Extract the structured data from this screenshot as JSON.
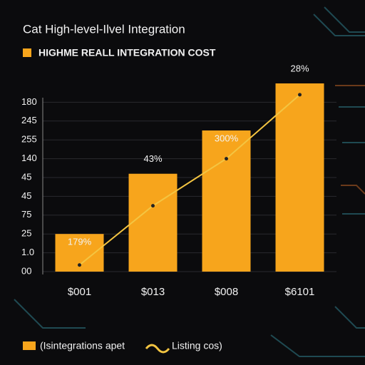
{
  "chart_data": {
    "type": "bar",
    "title": "Cat High-level-Ilvel Integration",
    "subtitle": "HIGHME REALL INTEGRATION COST",
    "categories": [
      "$001",
      "$013",
      "$008",
      "$6101"
    ],
    "series": [
      {
        "name": "(Isintegrations apet",
        "color": "#f7a51c",
        "type": "bar",
        "values": [
          2.0,
          5.2,
          7.5,
          10.0
        ]
      },
      {
        "name": "Listing cos)",
        "color": "#f4c542",
        "type": "line",
        "values": [
          0.35,
          3.5,
          6.0,
          9.4
        ]
      }
    ],
    "annotations": [
      "179%",
      "43%",
      "300%",
      "28%"
    ],
    "ylim": [
      0,
      10
    ],
    "yticks": [
      {
        "value": 0,
        "label": "00"
      },
      {
        "value": 1,
        "label": "1.0"
      },
      {
        "value": 2,
        "label": "25"
      },
      {
        "value": 3,
        "label": "75"
      },
      {
        "value": 4,
        "label": "45"
      },
      {
        "value": 5,
        "label": "45"
      },
      {
        "value": 6,
        "label": "140"
      },
      {
        "value": 7,
        "label": "255"
      },
      {
        "value": 8,
        "label": "245"
      },
      {
        "value": 9,
        "label": "180"
      }
    ],
    "grid": true
  }
}
